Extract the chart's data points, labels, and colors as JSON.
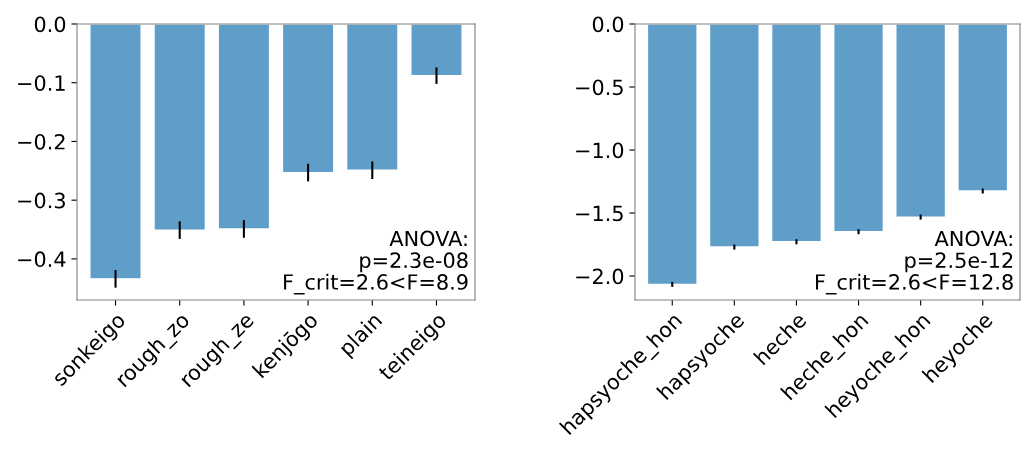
{
  "chart_data": [
    {
      "type": "bar",
      "categories": [
        "sonkeigo",
        "rough_zo",
        "rough_ze",
        "kenjōgo",
        "plain",
        "teineigo"
      ],
      "values": [
        -0.434,
        -0.351,
        -0.349,
        -0.253,
        -0.249,
        -0.088
      ],
      "errors": [
        0.015,
        0.015,
        0.015,
        0.015,
        0.015,
        0.014
      ],
      "color": "#5f9ec9",
      "ylim": [
        -0.47,
        0
      ],
      "yticks": [
        {
          "value": 0,
          "label": "0.0"
        },
        {
          "value": -0.1,
          "label": "−0.1"
        },
        {
          "value": -0.2,
          "label": "−0.2"
        },
        {
          "value": -0.3,
          "label": "−0.3"
        },
        {
          "value": -0.4,
          "label": "−0.4"
        }
      ],
      "annotations": [
        "ANOVA:\np=2.3e-08\nF_crit=2.6<F=8.9"
      ]
    },
    {
      "type": "bar",
      "categories": [
        "hapsyoche_hon",
        "hapsyoche",
        "heche",
        "heche_hon",
        "heyoche_hon",
        "heyoche"
      ],
      "values": [
        -2.066,
        -1.77,
        -1.728,
        -1.648,
        -1.532,
        -1.325
      ],
      "errors": [
        0.02,
        0.02,
        0.02,
        0.02,
        0.02,
        0.02
      ],
      "color": "#5f9ec9",
      "ylim": [
        -2.19,
        0
      ],
      "yticks": [
        {
          "value": 0,
          "label": "0.0"
        },
        {
          "value": -0.5,
          "label": "−0.5"
        },
        {
          "value": -1.0,
          "label": "−1.0"
        },
        {
          "value": -1.5,
          "label": "−1.5"
        },
        {
          "value": -2.0,
          "label": "−2.0"
        }
      ],
      "annotations": [
        "ANOVA:\np=2.5e-12\nF_crit=2.6<F=12.8"
      ]
    }
  ]
}
